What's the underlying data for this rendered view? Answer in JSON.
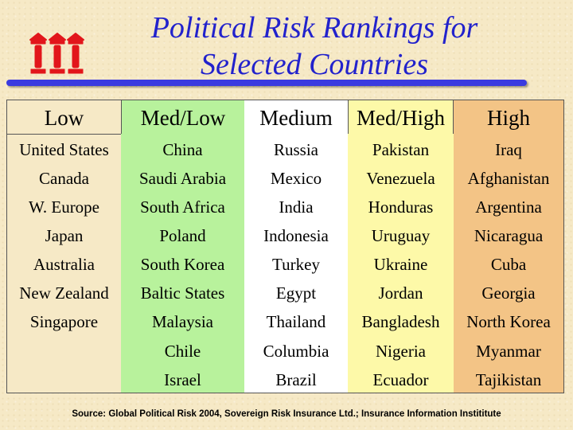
{
  "title": {
    "line1": "Political Risk Rankings for",
    "line2": "Selected Countries"
  },
  "colors": {
    "title": "#2222cc",
    "low": "#f6e9c6",
    "med_low": "#b8f29c",
    "medium": "#ffffff",
    "med_high": "#fdf9a8",
    "high": "#f3c486"
  },
  "logo_icon": "three-red-building-columns-icon",
  "table": {
    "columns": [
      {
        "header": "Low",
        "countries": [
          "United States",
          "Canada",
          "W. Europe",
          "Japan",
          "Australia",
          "New Zealand",
          "Singapore"
        ]
      },
      {
        "header": "Med/Low",
        "countries": [
          "China",
          "Saudi Arabia",
          "South Africa",
          "Poland",
          "South Korea",
          "Baltic States",
          "Malaysia",
          "Chile",
          "Israel"
        ]
      },
      {
        "header": "Medium",
        "countries": [
          "Russia",
          "Mexico",
          "India",
          "Indonesia",
          "Turkey",
          "Egypt",
          "Thailand",
          "Columbia",
          "Brazil"
        ]
      },
      {
        "header": "Med/High",
        "countries": [
          "Pakistan",
          "Venezuela",
          "Honduras",
          "Uruguay",
          "Ukraine",
          "Jordan",
          "Bangladesh",
          "Nigeria",
          "Ecuador"
        ]
      },
      {
        "header": "High",
        "countries": [
          "Iraq",
          "Afghanistan",
          "Argentina",
          "Nicaragua",
          "Cuba",
          "Georgia",
          "North Korea",
          "Myanmar",
          "Tajikistan"
        ]
      }
    ]
  },
  "source": "Source:  Global Political Risk 2004, Sovereign Risk Insurance Ltd.; Insurance Information Instititute"
}
